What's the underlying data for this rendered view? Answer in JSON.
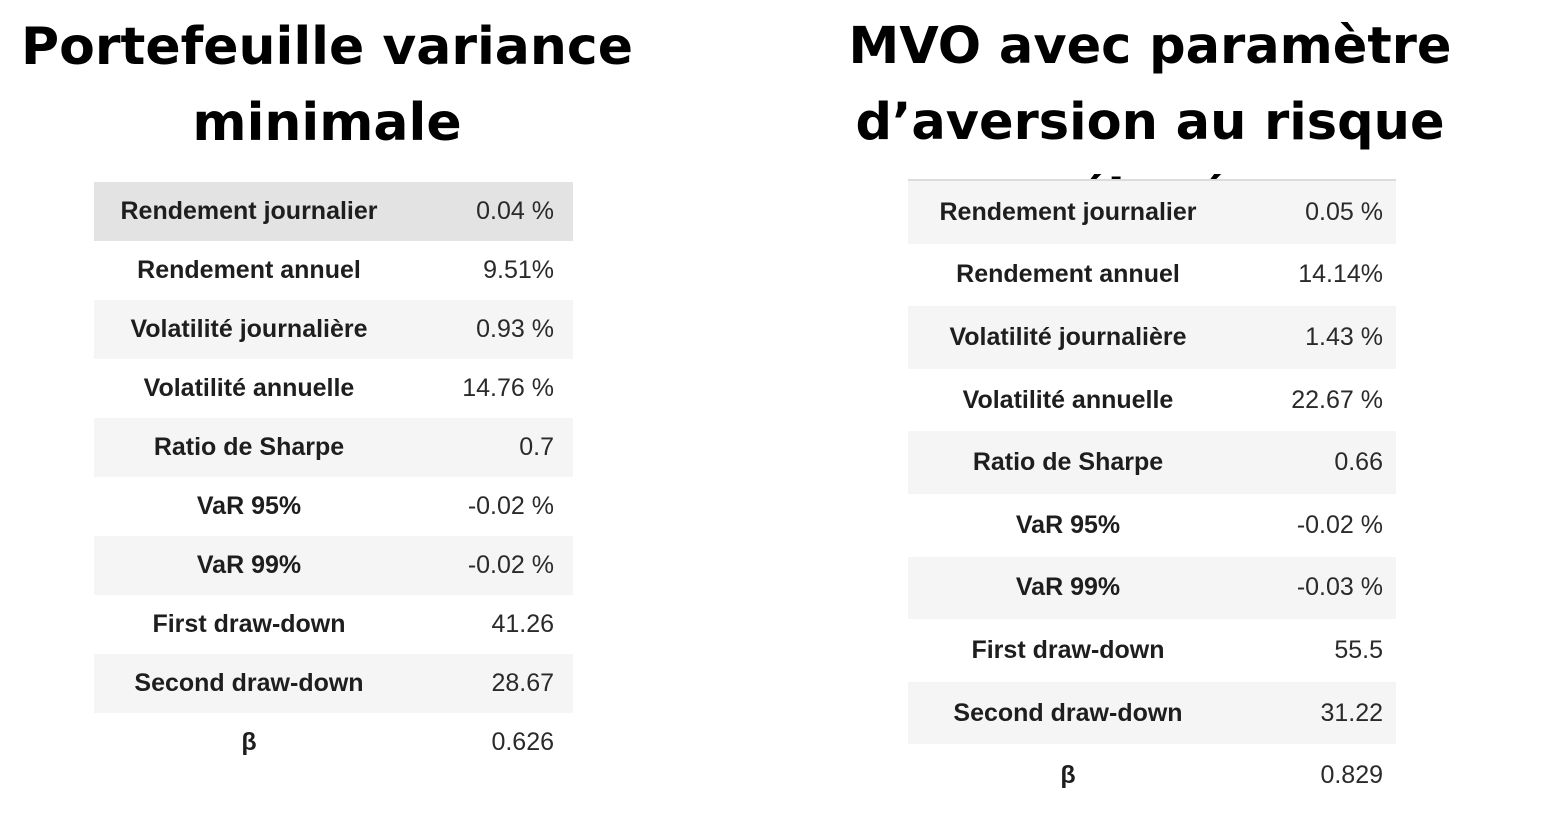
{
  "left_panel": {
    "title_line1": "Portefeuille variance",
    "title_line2": "minimale",
    "rows": [
      {
        "metric": "Rendement journalier",
        "value": "0.04 %"
      },
      {
        "metric": "Rendement annuel",
        "value": "9.51%"
      },
      {
        "metric": "Volatilité journalière",
        "value": "0.93 %"
      },
      {
        "metric": "Volatilité annuelle",
        "value": "14.76 %"
      },
      {
        "metric": "Ratio de Sharpe",
        "value": "0.7"
      },
      {
        "metric": "VaR 95%",
        "value": "-0.02 %"
      },
      {
        "metric": "VaR 99%",
        "value": "-0.02 %"
      },
      {
        "metric": "First draw-down",
        "value": "41.26"
      },
      {
        "metric": "Second draw-down",
        "value": "28.67"
      },
      {
        "metric": "β",
        "value": "0.626"
      }
    ]
  },
  "right_panel": {
    "title_line1": "MVO avec paramètre",
    "title_line2": "d’aversion au risque élevé",
    "rows": [
      {
        "metric": "Rendement journalier",
        "value": "0.05 %"
      },
      {
        "metric": "Rendement annuel",
        "value": "14.14%"
      },
      {
        "metric": "Volatilité journalière",
        "value": "1.43 %"
      },
      {
        "metric": "Volatilité annuelle",
        "value": "22.67 %"
      },
      {
        "metric": "Ratio de Sharpe",
        "value": "0.66"
      },
      {
        "metric": "VaR 95%",
        "value": "-0.02 %"
      },
      {
        "metric": "VaR 99%",
        "value": "-0.03 %"
      },
      {
        "metric": "First draw-down",
        "value": "55.5"
      },
      {
        "metric": "Second draw-down",
        "value": "31.22"
      },
      {
        "metric": "β",
        "value": "0.829"
      }
    ]
  }
}
